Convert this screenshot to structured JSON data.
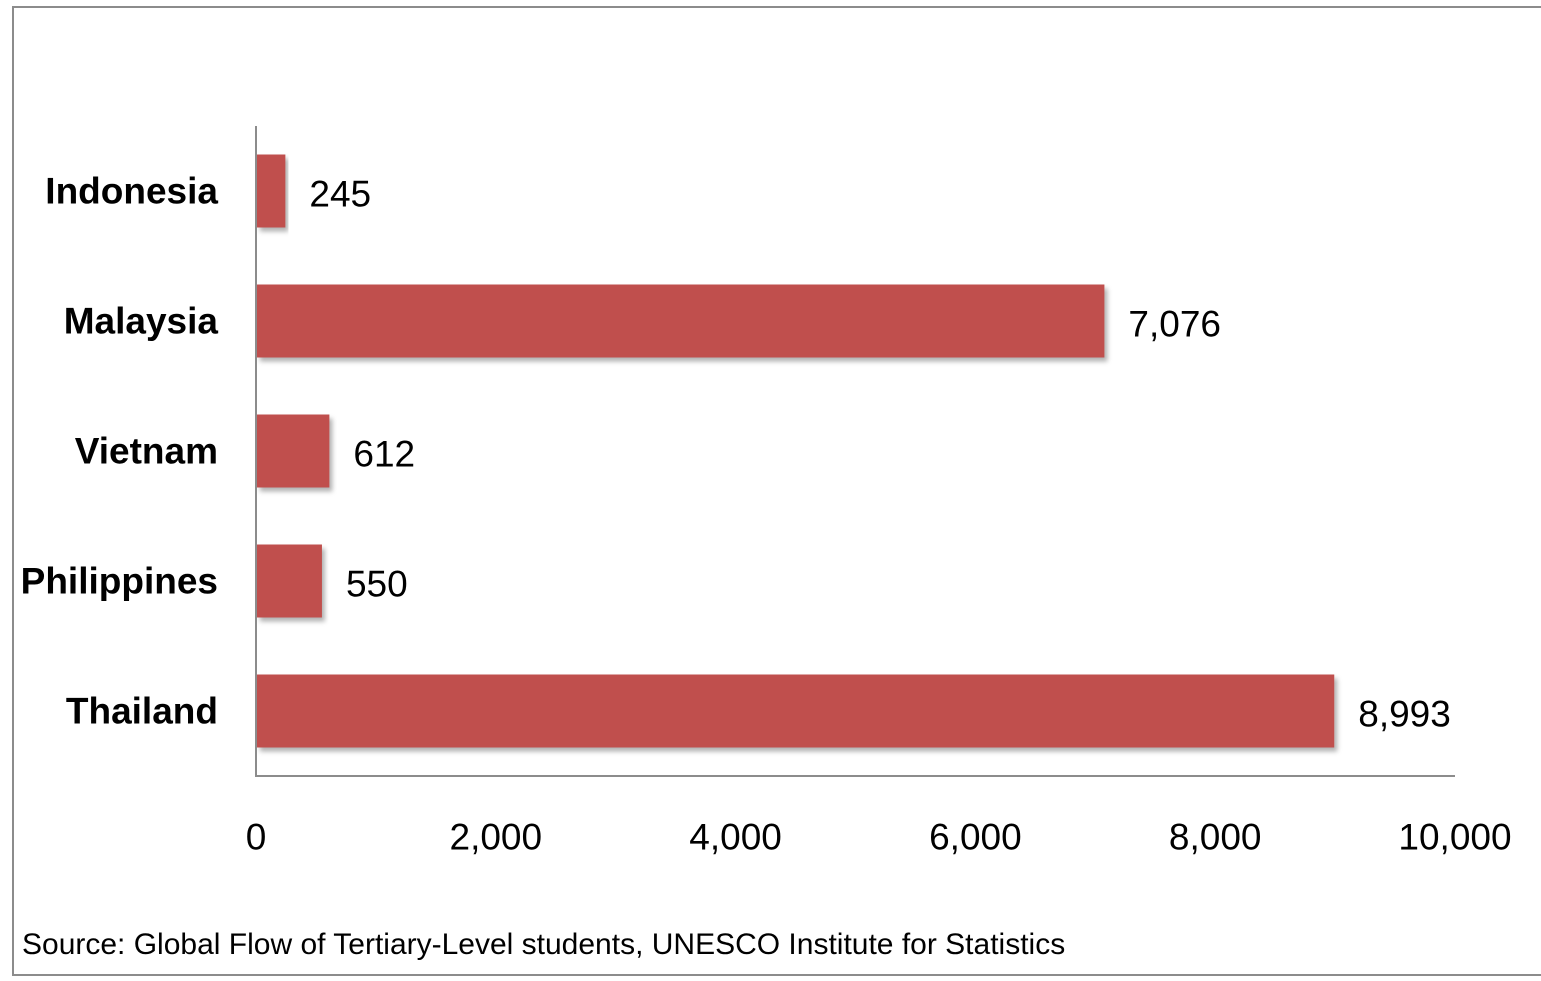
{
  "chart_data": {
    "type": "bar",
    "orientation": "horizontal",
    "categories": [
      "Indonesia",
      "Malaysia",
      "Vietnam",
      "Philippines",
      "Thailand"
    ],
    "values": [
      245,
      7076,
      612,
      550,
      8993
    ],
    "value_labels": [
      "245",
      "7,076",
      "612",
      "550",
      "8,993"
    ],
    "xlim": [
      0,
      10000
    ],
    "x_ticks": [
      0,
      2000,
      4000,
      6000,
      8000,
      10000
    ],
    "x_tick_labels": [
      "0",
      "2,000",
      "4,000",
      "6,000",
      "8,000",
      "10,000"
    ],
    "grid": false,
    "legend": "none",
    "bar_color": "#C0504D"
  },
  "source_note": "Source: Global Flow of Tertiary-Level students, UNESCO Institute for Statistics"
}
